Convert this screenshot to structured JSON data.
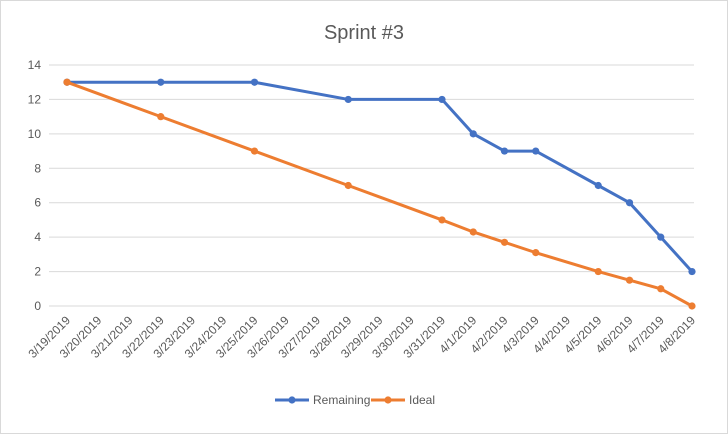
{
  "chart_data": {
    "type": "line",
    "title": "Sprint #3",
    "xlabel": "",
    "ylabel": "",
    "ylim": [
      0,
      14
    ],
    "yticks": [
      0,
      2,
      4,
      6,
      8,
      10,
      12,
      14
    ],
    "grid": true,
    "legend_position": "bottom",
    "categories": [
      "3/19/2019",
      "3/20/2019",
      "3/21/2019",
      "3/22/2019",
      "3/23/2019",
      "3/24/2019",
      "3/25/2019",
      "3/26/2019",
      "3/27/2019",
      "3/28/2019",
      "3/29/2019",
      "3/30/2019",
      "3/31/2019",
      "4/1/2019",
      "4/2/2019",
      "4/3/2019",
      "4/4/2019",
      "4/5/2019",
      "4/6/2019",
      "4/7/2019",
      "4/8/2019"
    ],
    "series": [
      {
        "name": "Remaining",
        "color": "#4472c4",
        "points": [
          [
            "3/19/2019",
            13
          ],
          [
            "3/22/2019",
            13
          ],
          [
            "3/25/2019",
            13
          ],
          [
            "3/28/2019",
            12
          ],
          [
            "3/31/2019",
            12
          ],
          [
            "4/1/2019",
            10
          ],
          [
            "4/2/2019",
            9
          ],
          [
            "4/3/2019",
            9
          ],
          [
            "4/5/2019",
            7
          ],
          [
            "4/6/2019",
            6
          ],
          [
            "4/7/2019",
            4
          ],
          [
            "4/8/2019",
            2
          ]
        ]
      },
      {
        "name": "Ideal",
        "color": "#ed7d31",
        "points": [
          [
            "3/19/2019",
            13
          ],
          [
            "3/22/2019",
            11
          ],
          [
            "3/25/2019",
            9
          ],
          [
            "3/28/2019",
            7
          ],
          [
            "3/31/2019",
            5
          ],
          [
            "4/1/2019",
            4.3
          ],
          [
            "4/2/2019",
            3.7
          ],
          [
            "4/3/2019",
            3.1
          ],
          [
            "4/5/2019",
            2
          ],
          [
            "4/6/2019",
            1.5
          ],
          [
            "4/7/2019",
            1
          ],
          [
            "4/8/2019",
            0
          ]
        ]
      }
    ]
  }
}
